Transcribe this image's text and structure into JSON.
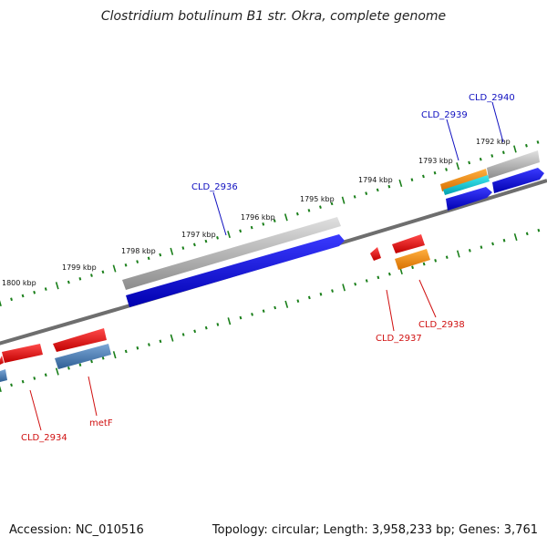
{
  "title": "Clostridium botulinum B1 str. Okra, complete genome",
  "footer": {
    "accession": "Accession: NC_010516",
    "topology": "Topology: circular; Length: 3,958,233 bp; Genes: 3,761"
  },
  "scale_labels": [
    "1792 kbp",
    "1793 kbp",
    "1794 kbp",
    "1795 kbp",
    "1796 kbp",
    "1797 kbp",
    "1798 kbp",
    "1799 kbp",
    "1800 kbp"
  ],
  "gene_labels": [
    "CLD_2940",
    "CLD_2939",
    "CLD_2936",
    "CLD_2938",
    "CLD_2937",
    "metF",
    "CLD_2934"
  ],
  "colors": {
    "backbone": "#7a7a7a",
    "tick": "#1a7f1a",
    "cds_forward_gray": "#b0b0b0",
    "cds_blue": "#0000e0",
    "cds_red": "#e00000",
    "cds_steelblue": "#4a7fb5",
    "cds_orange": "#ff8c00",
    "cds_cyan": "#00c8d0",
    "label_blue": "#1010c0",
    "label_red": "#d01010"
  }
}
